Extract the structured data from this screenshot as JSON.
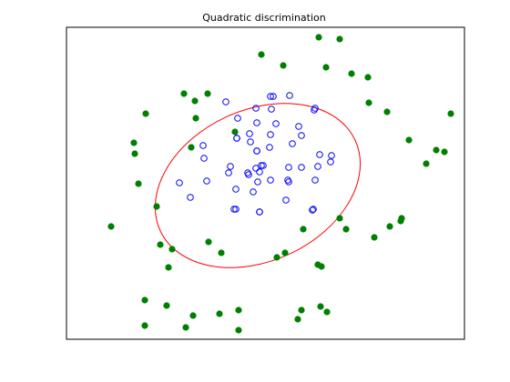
{
  "chart_data": {
    "type": "scatter",
    "title": "Quadratic discrimination",
    "xlabel": "",
    "ylabel": "",
    "xlim": [
      0,
      437
    ],
    "ylim": [
      0,
      343
    ],
    "grid": false,
    "axis_ticks": false,
    "series": [
      {
        "marker": "filled-circle",
        "color": "#008000",
        "points": [
          [
            277,
            332
          ],
          [
            300,
            330
          ],
          [
            214,
            313
          ],
          [
            238,
            301
          ],
          [
            285,
            299
          ],
          [
            313,
            292
          ],
          [
            331,
            288
          ],
          [
            129,
            270
          ],
          [
            141,
            262
          ],
          [
            155,
            270
          ],
          [
            332,
            260
          ],
          [
            352,
            250
          ],
          [
            87,
            248
          ],
          [
            422,
            248
          ],
          [
            137,
            211
          ],
          [
            142,
            243
          ],
          [
            185,
            228
          ],
          [
            74,
            216
          ],
          [
            75,
            204
          ],
          [
            376,
            219
          ],
          [
            395,
            193
          ],
          [
            406,
            208
          ],
          [
            415,
            206
          ],
          [
            79,
            171
          ],
          [
            99,
            146
          ],
          [
            49,
            124
          ],
          [
            367,
            130
          ],
          [
            368,
            133
          ],
          [
            355,
            124
          ],
          [
            300,
            133
          ],
          [
            307,
            121
          ],
          [
            338,
            112
          ],
          [
            260,
            121
          ],
          [
            103,
            104
          ],
          [
            116,
            99
          ],
          [
            156,
            107
          ],
          [
            170,
            95
          ],
          [
            240,
            95
          ],
          [
            231,
            90
          ],
          [
            276,
            82
          ],
          [
            280,
            80
          ],
          [
            112,
            79
          ],
          [
            86,
            43
          ],
          [
            110,
            37
          ],
          [
            139,
            26
          ],
          [
            168,
            28
          ],
          [
            189,
            32
          ],
          [
            254,
            22
          ],
          [
            258,
            32
          ],
          [
            279,
            36
          ],
          [
            286,
            30
          ],
          [
            131,
            13
          ],
          [
            189,
            10
          ],
          [
            86,
            15
          ]
        ]
      },
      {
        "marker": "open-circle",
        "color": "#0000ff",
        "points": [
          [
            224,
            267
          ],
          [
            227,
            267
          ],
          [
            245,
            268
          ],
          [
            175,
            261
          ],
          [
            208,
            254
          ],
          [
            225,
            253
          ],
          [
            273,
            254
          ],
          [
            188,
            243
          ],
          [
            272,
            252
          ],
          [
            209,
            238
          ],
          [
            230,
            237
          ],
          [
            201,
            226
          ],
          [
            255,
            234
          ],
          [
            187,
            221
          ],
          [
            224,
            225
          ],
          [
            248,
            215
          ],
          [
            258,
            224
          ],
          [
            150,
            213
          ],
          [
            187,
            221
          ],
          [
            202,
            217
          ],
          [
            209,
            207
          ],
          [
            151,
            199
          ],
          [
            209,
            207
          ],
          [
            223,
            211
          ],
          [
            278,
            203
          ],
          [
            291,
            202
          ],
          [
            178,
            183
          ],
          [
            180,
            190
          ],
          [
            208,
            188
          ],
          [
            214,
            191
          ],
          [
            216,
            191
          ],
          [
            244,
            189
          ],
          [
            258,
            189
          ],
          [
            276,
            190
          ],
          [
            290,
            195
          ],
          [
            199,
            183
          ],
          [
            200,
            181
          ],
          [
            212,
            184
          ],
          [
            154,
            174
          ],
          [
            210,
            173
          ],
          [
            224,
            175
          ],
          [
            243,
            175
          ],
          [
            273,
            175
          ],
          [
            124,
            172
          ],
          [
            205,
            162
          ],
          [
            244,
            173
          ],
          [
            136,
            156
          ],
          [
            186,
            165
          ],
          [
            184,
            143
          ],
          [
            212,
            140
          ],
          [
            241,
            153
          ],
          [
            271,
            143
          ],
          [
            186,
            143
          ],
          [
            212,
            140
          ],
          [
            270,
            142
          ]
        ]
      }
    ],
    "boundary": {
      "type": "ellipse",
      "color": "#ff0000",
      "center": [
        210,
        169
      ],
      "semi_axes": [
        118,
        83
      ],
      "rotation_deg": 25
    }
  }
}
